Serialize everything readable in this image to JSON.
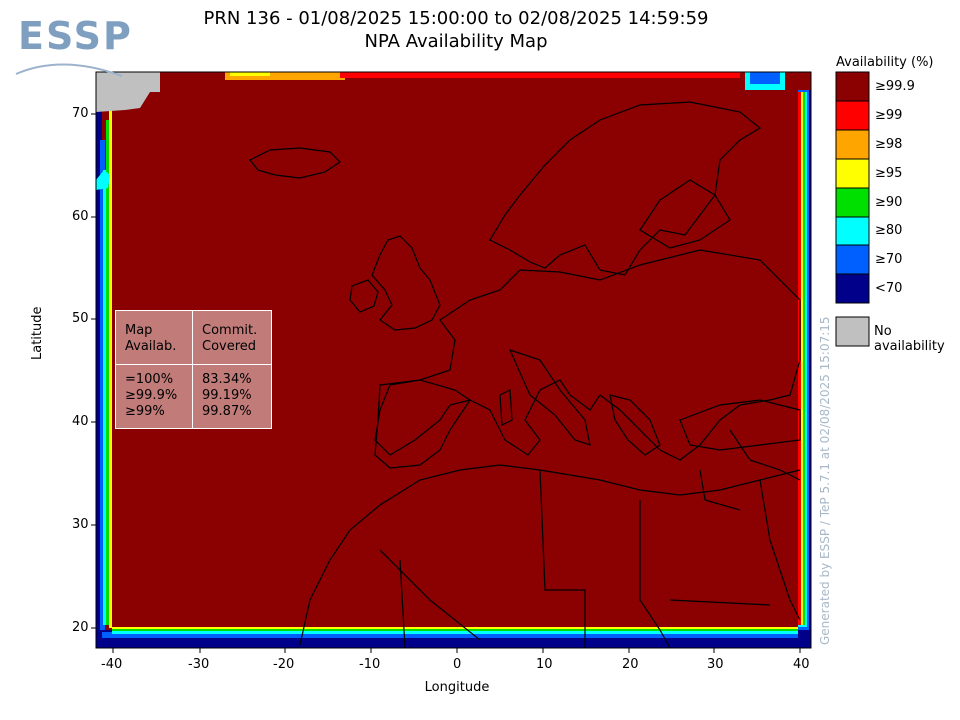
{
  "title": {
    "line1": "PRN 136 - 01/08/2025 15:00:00 to 02/08/2025 14:59:59",
    "line2": "NPA Availability Map"
  },
  "logo": {
    "text": "ESSP"
  },
  "axes": {
    "xlabel": "Longitude",
    "ylabel": "Latitude",
    "xticks": [
      "-40",
      "-30",
      "-20",
      "-10",
      "0",
      "10",
      "20",
      "30",
      "40"
    ],
    "yticks": [
      "20",
      "30",
      "40",
      "50",
      "60",
      "70"
    ],
    "xlim": [
      -42,
      42
    ],
    "ylim": [
      18,
      74
    ]
  },
  "legend": {
    "title": "Availability (%)",
    "items": [
      {
        "label": "≥99.9",
        "color": "#8b0000"
      },
      {
        "label": "≥99",
        "color": "#ff0000"
      },
      {
        "label": "≥98",
        "color": "#ffa500"
      },
      {
        "label": "≥95",
        "color": "#ffff00"
      },
      {
        "label": "≥90",
        "color": "#00e000"
      },
      {
        "label": "≥80",
        "color": "#00ffff"
      },
      {
        "label": "≥70",
        "color": "#0060ff"
      },
      {
        "label": "<70",
        "color": "#00008b"
      }
    ],
    "no_availability": {
      "label": "No availability",
      "color": "#c0c0c0"
    }
  },
  "stats_table": {
    "header_col1": [
      "Map",
      "Availab."
    ],
    "header_col2": [
      "Commit.",
      "Covered"
    ],
    "rows": [
      {
        "availability": "=100%",
        "covered": "83.34%"
      },
      {
        "availability": "≥99.9%",
        "covered": "99.19%"
      },
      {
        "availability": "≥99%",
        "covered": "99.87%"
      }
    ]
  },
  "watermark": "Generated by ESSP / TeP 5.7.1 at 02/08/2025 15:07:15",
  "map_data": {
    "type": "heatmap",
    "dominant_class": "≥99.9",
    "notes_visible": false
  }
}
